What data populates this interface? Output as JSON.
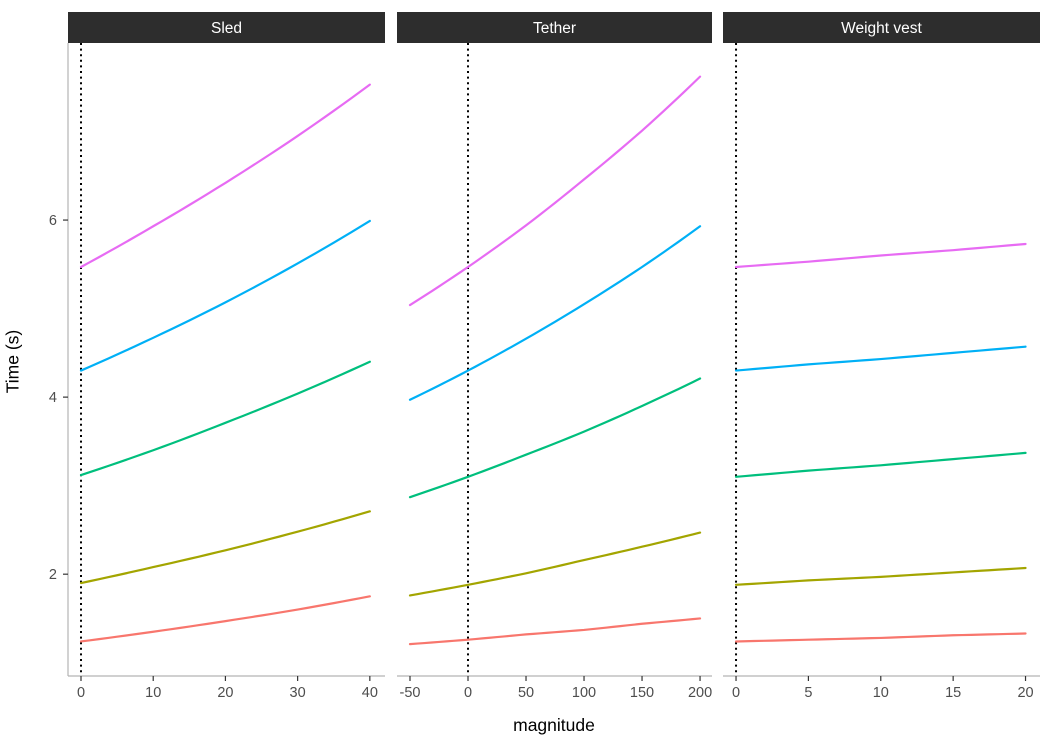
{
  "figure": {
    "ylabel": "Time (s)",
    "xlabel": "magnitude",
    "background": "#FFFFFF",
    "strip_background": "#2D2D2D",
    "strip_text_color": "#FFFFFF",
    "axis_line_color": "#B3B3B3",
    "tick_color": "#333333",
    "tick_label_color": "#4D4D4D"
  },
  "chart_data": {
    "type": "line",
    "title": "",
    "xlabel": "magnitude",
    "ylabel": "Time (s)",
    "grid": false,
    "legend": "none",
    "ylim": [
      0.85,
      8.0
    ],
    "yticks": [
      2,
      4,
      6
    ],
    "reference_line": {
      "orientation": "vertical",
      "x": 0,
      "style": "dotted",
      "color": "#000000"
    },
    "facets": [
      {
        "label": "Sled",
        "xticks": [
          0,
          10,
          20,
          30,
          40
        ],
        "xlim": [
          -1.8,
          42.1
        ],
        "vline_x": 0,
        "x": [
          0,
          10,
          20,
          30,
          40
        ],
        "series": [
          {
            "name": "red",
            "color": "#F8766D",
            "values": [
              1.24,
              1.35,
              1.47,
              1.6,
              1.75
            ]
          },
          {
            "name": "olive",
            "color": "#A3A500",
            "values": [
              1.9,
              2.08,
              2.27,
              2.48,
              2.71
            ]
          },
          {
            "name": "green",
            "color": "#00BF7D",
            "values": [
              3.12,
              3.4,
              3.71,
              4.04,
              4.4
            ]
          },
          {
            "name": "blue",
            "color": "#00B0F6",
            "values": [
              4.3,
              4.67,
              5.07,
              5.51,
              5.99
            ]
          },
          {
            "name": "magenta",
            "color": "#E76BF3",
            "values": [
              5.47,
              5.93,
              6.42,
              6.95,
              7.53
            ]
          }
        ]
      },
      {
        "label": "Tether",
        "xticks": [
          -50,
          0,
          50,
          100,
          150,
          200
        ],
        "xlim": [
          -61.2,
          210.3
        ],
        "vline_x": 0,
        "x": [
          -50,
          0,
          50,
          100,
          150,
          200
        ],
        "series": [
          {
            "name": "red",
            "color": "#F8766D",
            "values": [
              1.21,
              1.26,
              1.32,
              1.37,
              1.44,
              1.5
            ]
          },
          {
            "name": "olive",
            "color": "#A3A500",
            "values": [
              1.76,
              1.88,
              2.01,
              2.16,
              2.31,
              2.47
            ]
          },
          {
            "name": "green",
            "color": "#00BF7D",
            "values": [
              2.87,
              3.1,
              3.35,
              3.61,
              3.9,
              4.21
            ]
          },
          {
            "name": "blue",
            "color": "#00B0F6",
            "values": [
              3.97,
              4.3,
              4.66,
              5.05,
              5.47,
              5.93
            ]
          },
          {
            "name": "magenta",
            "color": "#E76BF3",
            "values": [
              5.04,
              5.47,
              5.94,
              6.46,
              7.01,
              7.62
            ]
          }
        ]
      },
      {
        "label": "Weight vest",
        "xticks": [
          0,
          5,
          10,
          15,
          20
        ],
        "xlim": [
          -0.9,
          21.0
        ],
        "vline_x": 0,
        "x": [
          0,
          5,
          10,
          15,
          20
        ],
        "series": [
          {
            "name": "red",
            "color": "#F8766D",
            "values": [
              1.24,
              1.26,
              1.28,
              1.31,
              1.33
            ]
          },
          {
            "name": "olive",
            "color": "#A3A500",
            "values": [
              1.88,
              1.93,
              1.97,
              2.02,
              2.07
            ]
          },
          {
            "name": "green",
            "color": "#00BF7D",
            "values": [
              3.1,
              3.17,
              3.23,
              3.3,
              3.37
            ]
          },
          {
            "name": "blue",
            "color": "#00B0F6",
            "values": [
              4.3,
              4.37,
              4.43,
              4.5,
              4.57
            ]
          },
          {
            "name": "magenta",
            "color": "#E76BF3",
            "values": [
              5.47,
              5.53,
              5.6,
              5.66,
              5.73
            ]
          }
        ]
      }
    ]
  }
}
